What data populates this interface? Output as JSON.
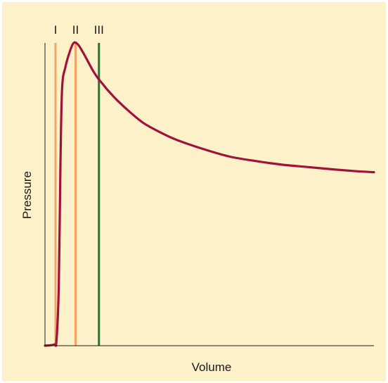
{
  "chart_data": {
    "type": "line",
    "title": "",
    "xlabel": "Volume",
    "ylabel": "Pressure",
    "xlim": [
      0,
      100
    ],
    "ylim": [
      0,
      100
    ],
    "grid": false,
    "legend": "none",
    "series": [
      {
        "color": "#a0113c",
        "x": [
          0,
          2.8,
          3.5,
          4.2,
          4.7,
          5.2,
          6.2,
          7.5,
          8.7,
          10.0,
          11.5,
          13.0,
          14.5,
          16.0,
          17.5,
          19.0,
          22.0,
          26.0,
          30.0,
          35.0,
          40.0,
          48.0,
          56.0,
          64.0,
          72.0,
          80.0,
          88.0,
          95.0,
          100.0
        ],
        "y": [
          0,
          0.4,
          1.8,
          20,
          60,
          85,
          92,
          97,
          100,
          99.5,
          97,
          94,
          91,
          88.5,
          86.5,
          84.5,
          81,
          77,
          73.5,
          70.5,
          68,
          65,
          62.5,
          61,
          59.8,
          59,
          58.2,
          57.6,
          57.3
        ]
      }
    ],
    "markers": [
      {
        "label": "I",
        "x": 3.2,
        "color": "#f2a466"
      },
      {
        "label": "II",
        "x": 9.3,
        "color": "#f2a466"
      },
      {
        "label": "III",
        "x": 16.4,
        "color": "#1e7a32"
      }
    ]
  },
  "colors": {
    "background": "#fdf1c9",
    "axis": "#1a1a1a"
  }
}
